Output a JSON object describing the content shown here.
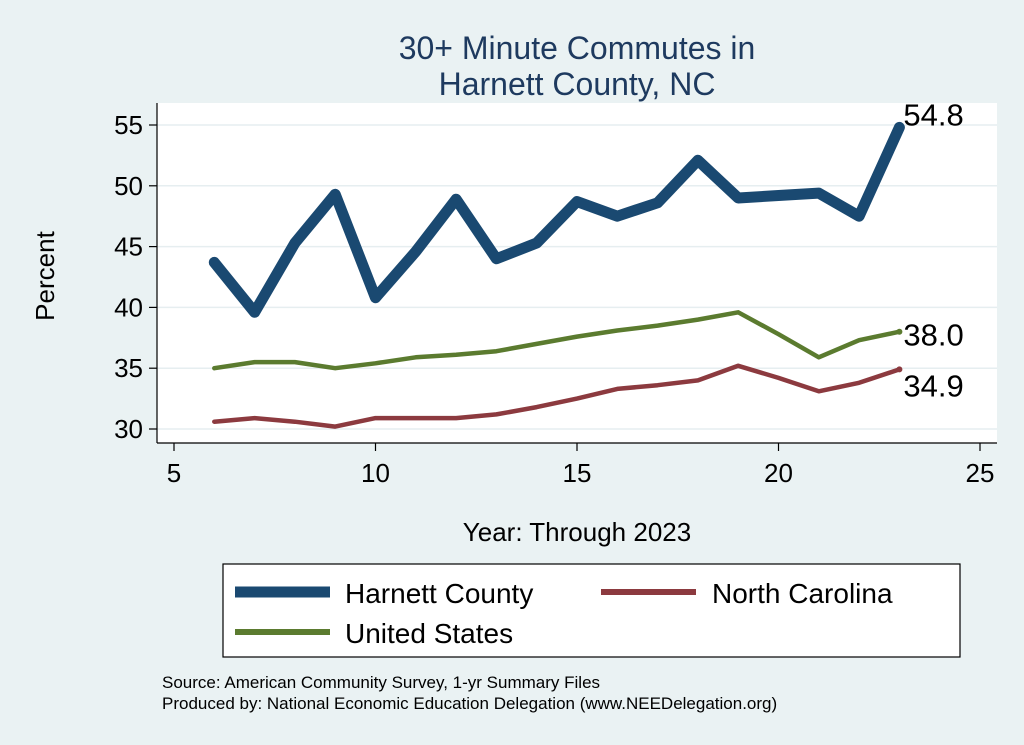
{
  "chart_data": {
    "type": "line",
    "title": [
      "30+ Minute Commutes in",
      "Harnett County, NC"
    ],
    "xlabel": "Year: Through 2023",
    "ylabel": "Percent",
    "xlim": [
      5,
      25
    ],
    "ylim": [
      29.5,
      56
    ],
    "xticks": [
      5,
      10,
      15,
      20,
      25
    ],
    "yticks": [
      30,
      35,
      40,
      45,
      50,
      55
    ],
    "grid": true,
    "legend_position": "bottom",
    "series": [
      {
        "name": "Harnett County",
        "color": "#1a4971",
        "x": [
          6,
          7,
          8,
          9,
          10,
          11,
          12,
          13,
          14,
          15,
          16,
          17,
          18,
          19,
          20,
          21,
          22,
          23
        ],
        "values": [
          43.7,
          39.6,
          45.3,
          49.3,
          40.8,
          44.6,
          48.9,
          44.0,
          45.3,
          48.7,
          47.5,
          48.6,
          52.1,
          49.0,
          49.2,
          49.4,
          47.5,
          54.8
        ],
        "end_label": "54.8"
      },
      {
        "name": "North Carolina",
        "color": "#8c3a3f",
        "x": [
          6,
          7,
          8,
          9,
          10,
          11,
          12,
          13,
          14,
          15,
          16,
          17,
          18,
          19,
          20,
          21,
          22,
          23
        ],
        "values": [
          30.6,
          30.9,
          30.6,
          30.2,
          30.9,
          30.9,
          30.9,
          31.2,
          31.8,
          32.5,
          33.3,
          33.6,
          34.0,
          35.2,
          34.2,
          33.1,
          33.8,
          34.9
        ],
        "end_label": "34.9"
      },
      {
        "name": "United States",
        "color": "#5b7b2f",
        "x": [
          6,
          7,
          8,
          9,
          10,
          11,
          12,
          13,
          14,
          15,
          16,
          17,
          18,
          19,
          20,
          21,
          22,
          23
        ],
        "values": [
          35.0,
          35.5,
          35.5,
          35.0,
          35.4,
          35.9,
          36.1,
          36.4,
          37.0,
          37.6,
          38.1,
          38.5,
          39.0,
          39.6,
          37.8,
          35.9,
          37.3,
          38.0
        ],
        "end_label": "38.0"
      }
    ]
  },
  "notes": {
    "source": "Source: American Community Survey, 1-yr Summary Files",
    "produced": "Produced by: National Economic Education Delegation (www.NEEDelegation.org)"
  }
}
